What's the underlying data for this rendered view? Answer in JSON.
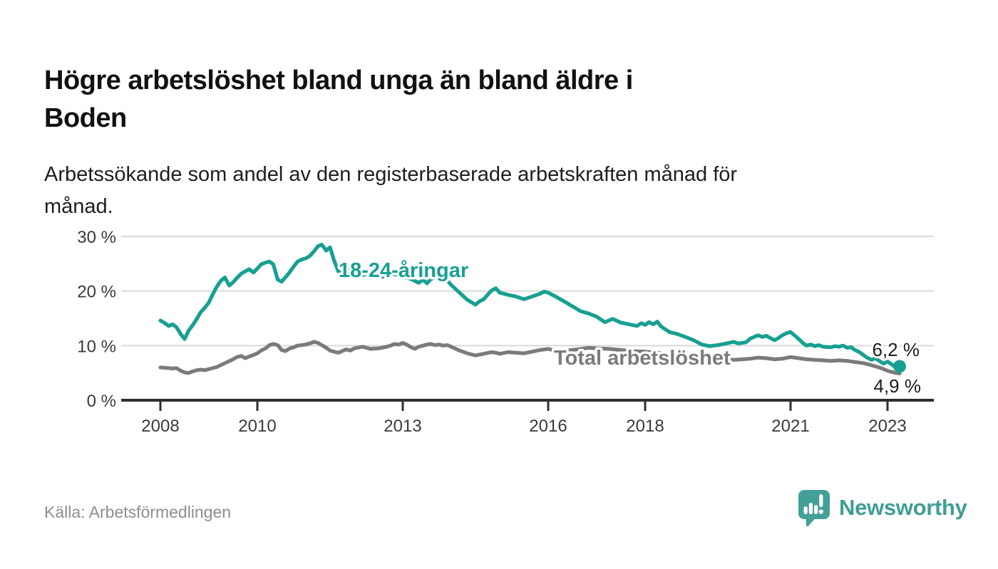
{
  "header": {
    "title_lines": [
      "Högre arbetslöshet bland unga än bland äldre i",
      "Boden"
    ],
    "subtitle_lines": [
      "Arbetssökande som andel av den registerbaserade arbetskraften månad för",
      "månad."
    ]
  },
  "footer": {
    "source": "Källa: Arbetsförmedlingen",
    "brand_name": "Newsworthy",
    "brand_icon": "bar-chart-speech-bubble-icon"
  },
  "chart_data": {
    "type": "line",
    "title": "Högre arbetslöshet bland unga än bland äldre i Boden",
    "subtitle": "Arbetssökande som andel av den registerbaserade arbetskraften månad för månad.",
    "x_unit": "decimal_year_monthly",
    "x_range": [
      2008.0,
      2023.25
    ],
    "ylim": [
      0,
      32
    ],
    "grid": "horizontal",
    "legend": "inline-labels-on-chart",
    "yticks": [
      {
        "value": 0,
        "label": "0 %"
      },
      {
        "value": 10,
        "label": "10 %"
      },
      {
        "value": 20,
        "label": "20 %"
      },
      {
        "value": 30,
        "label": "30 %"
      }
    ],
    "xticks": [
      {
        "value": 2008,
        "label": "2008"
      },
      {
        "value": 2010,
        "label": "2010"
      },
      {
        "value": 2013,
        "label": "2013"
      },
      {
        "value": 2016,
        "label": "2016"
      },
      {
        "value": 2018,
        "label": "2018"
      },
      {
        "value": 2021,
        "label": "2021"
      },
      {
        "value": 2023,
        "label": "2023"
      }
    ],
    "colors": {
      "youth_line": "#17a092",
      "total_line": "#7b7b7b",
      "grid": "#d9d9d9",
      "axis": "#2e2e2e",
      "end_label_text": "#1c1c1c"
    },
    "series": [
      {
        "name": "18-24-åringar",
        "color": "#17a092",
        "end_value": 6.2,
        "end_label": "6,2 %",
        "points": [
          [
            2008.0,
            14.6
          ],
          [
            2008.08,
            14.2
          ],
          [
            2008.17,
            13.6
          ],
          [
            2008.25,
            13.9
          ],
          [
            2008.33,
            13.4
          ],
          [
            2008.42,
            12.1
          ],
          [
            2008.5,
            11.2
          ],
          [
            2008.58,
            12.7
          ],
          [
            2008.67,
            13.8
          ],
          [
            2008.75,
            14.9
          ],
          [
            2008.83,
            16.1
          ],
          [
            2008.92,
            17.0
          ],
          [
            2009.0,
            17.9
          ],
          [
            2009.08,
            19.4
          ],
          [
            2009.17,
            20.9
          ],
          [
            2009.25,
            21.9
          ],
          [
            2009.33,
            22.5
          ],
          [
            2009.42,
            21.0
          ],
          [
            2009.5,
            21.6
          ],
          [
            2009.58,
            22.4
          ],
          [
            2009.67,
            23.2
          ],
          [
            2009.75,
            23.6
          ],
          [
            2009.83,
            24.0
          ],
          [
            2009.92,
            23.4
          ],
          [
            2010.0,
            24.1
          ],
          [
            2010.08,
            24.9
          ],
          [
            2010.17,
            25.2
          ],
          [
            2010.25,
            25.4
          ],
          [
            2010.33,
            24.9
          ],
          [
            2010.42,
            22.1
          ],
          [
            2010.5,
            21.7
          ],
          [
            2010.58,
            22.5
          ],
          [
            2010.67,
            23.5
          ],
          [
            2010.75,
            24.5
          ],
          [
            2010.83,
            25.4
          ],
          [
            2010.92,
            25.8
          ],
          [
            2011.0,
            26.0
          ],
          [
            2011.08,
            26.4
          ],
          [
            2011.17,
            27.3
          ],
          [
            2011.25,
            28.2
          ],
          [
            2011.33,
            28.5
          ],
          [
            2011.42,
            27.4
          ],
          [
            2011.5,
            28.0
          ],
          [
            2011.58,
            25.7
          ],
          [
            2011.67,
            23.6
          ],
          [
            2011.75,
            23.2
          ],
          [
            2011.83,
            24.0
          ],
          [
            2011.92,
            23.4
          ],
          [
            2012.0,
            23.6
          ],
          [
            2012.17,
            22.9
          ],
          [
            2012.33,
            23.3
          ],
          [
            2012.5,
            22.5
          ],
          [
            2012.67,
            22.8
          ],
          [
            2012.83,
            23.1
          ],
          [
            2013.0,
            22.6
          ],
          [
            2013.17,
            22.2
          ],
          [
            2013.33,
            21.5
          ],
          [
            2013.42,
            22.1
          ],
          [
            2013.5,
            21.4
          ],
          [
            2013.58,
            22.2
          ],
          [
            2013.67,
            22.5
          ],
          [
            2013.83,
            22.1
          ],
          [
            2013.92,
            21.9
          ],
          [
            2014.0,
            21.1
          ],
          [
            2014.17,
            19.7
          ],
          [
            2014.33,
            18.4
          ],
          [
            2014.5,
            17.5
          ],
          [
            2014.58,
            18.1
          ],
          [
            2014.67,
            18.5
          ],
          [
            2014.75,
            19.3
          ],
          [
            2014.83,
            20.1
          ],
          [
            2014.92,
            20.5
          ],
          [
            2015.0,
            19.7
          ],
          [
            2015.17,
            19.3
          ],
          [
            2015.33,
            19.0
          ],
          [
            2015.5,
            18.5
          ],
          [
            2015.67,
            19.0
          ],
          [
            2015.83,
            19.5
          ],
          [
            2015.92,
            19.9
          ],
          [
            2016.0,
            19.7
          ],
          [
            2016.17,
            18.9
          ],
          [
            2016.33,
            18.1
          ],
          [
            2016.5,
            17.2
          ],
          [
            2016.67,
            16.3
          ],
          [
            2016.83,
            15.9
          ],
          [
            2017.0,
            15.3
          ],
          [
            2017.17,
            14.3
          ],
          [
            2017.33,
            14.9
          ],
          [
            2017.5,
            14.2
          ],
          [
            2017.67,
            13.9
          ],
          [
            2017.83,
            13.6
          ],
          [
            2017.92,
            14.1
          ],
          [
            2018.0,
            13.8
          ],
          [
            2018.08,
            14.3
          ],
          [
            2018.17,
            13.9
          ],
          [
            2018.25,
            14.4
          ],
          [
            2018.33,
            13.5
          ],
          [
            2018.5,
            12.5
          ],
          [
            2018.67,
            12.1
          ],
          [
            2018.83,
            11.6
          ],
          [
            2019.0,
            11.0
          ],
          [
            2019.17,
            10.2
          ],
          [
            2019.33,
            9.9
          ],
          [
            2019.5,
            10.1
          ],
          [
            2019.67,
            10.4
          ],
          [
            2019.83,
            10.7
          ],
          [
            2019.92,
            10.4
          ],
          [
            2020.08,
            10.6
          ],
          [
            2020.17,
            11.3
          ],
          [
            2020.33,
            11.9
          ],
          [
            2020.42,
            11.6
          ],
          [
            2020.5,
            11.8
          ],
          [
            2020.58,
            11.4
          ],
          [
            2020.67,
            11.0
          ],
          [
            2020.75,
            11.4
          ],
          [
            2020.83,
            11.9
          ],
          [
            2020.92,
            12.3
          ],
          [
            2021.0,
            12.5
          ],
          [
            2021.08,
            11.9
          ],
          [
            2021.17,
            11.2
          ],
          [
            2021.25,
            10.5
          ],
          [
            2021.33,
            10.0
          ],
          [
            2021.42,
            10.2
          ],
          [
            2021.5,
            9.9
          ],
          [
            2021.58,
            10.1
          ],
          [
            2021.67,
            9.8
          ],
          [
            2021.83,
            9.7
          ],
          [
            2021.92,
            9.9
          ],
          [
            2022.0,
            9.8
          ],
          [
            2022.08,
            10.0
          ],
          [
            2022.17,
            9.6
          ],
          [
            2022.25,
            9.7
          ],
          [
            2022.33,
            9.2
          ],
          [
            2022.42,
            8.8
          ],
          [
            2022.5,
            8.3
          ],
          [
            2022.58,
            7.8
          ],
          [
            2022.67,
            7.4
          ],
          [
            2022.75,
            7.7
          ],
          [
            2022.83,
            7.2
          ],
          [
            2022.92,
            6.7
          ],
          [
            2023.0,
            7.1
          ],
          [
            2023.08,
            6.6
          ],
          [
            2023.17,
            6.0
          ],
          [
            2023.25,
            6.2
          ]
        ]
      },
      {
        "name": "Total arbetslöshet",
        "color": "#7b7b7b",
        "end_value": 4.9,
        "end_label": "4,9 %",
        "points": [
          [
            2008.0,
            6.0
          ],
          [
            2008.17,
            5.9
          ],
          [
            2008.25,
            5.8
          ],
          [
            2008.33,
            5.9
          ],
          [
            2008.42,
            5.4
          ],
          [
            2008.5,
            5.1
          ],
          [
            2008.58,
            5.0
          ],
          [
            2008.67,
            5.3
          ],
          [
            2008.75,
            5.5
          ],
          [
            2008.83,
            5.6
          ],
          [
            2008.92,
            5.5
          ],
          [
            2009.0,
            5.7
          ],
          [
            2009.17,
            6.1
          ],
          [
            2009.33,
            6.8
          ],
          [
            2009.5,
            7.5
          ],
          [
            2009.58,
            7.9
          ],
          [
            2009.67,
            8.1
          ],
          [
            2009.75,
            7.7
          ],
          [
            2009.83,
            8.0
          ],
          [
            2009.92,
            8.3
          ],
          [
            2010.0,
            8.6
          ],
          [
            2010.08,
            9.1
          ],
          [
            2010.17,
            9.5
          ],
          [
            2010.25,
            10.1
          ],
          [
            2010.33,
            10.3
          ],
          [
            2010.42,
            10.1
          ],
          [
            2010.5,
            9.2
          ],
          [
            2010.58,
            9.0
          ],
          [
            2010.67,
            9.5
          ],
          [
            2010.75,
            9.7
          ],
          [
            2010.83,
            10.0
          ],
          [
            2010.92,
            10.1
          ],
          [
            2011.0,
            10.2
          ],
          [
            2011.08,
            10.4
          ],
          [
            2011.17,
            10.7
          ],
          [
            2011.25,
            10.5
          ],
          [
            2011.33,
            10.1
          ],
          [
            2011.42,
            9.6
          ],
          [
            2011.5,
            9.1
          ],
          [
            2011.58,
            8.9
          ],
          [
            2011.67,
            8.7
          ],
          [
            2011.75,
            9.0
          ],
          [
            2011.83,
            9.3
          ],
          [
            2011.92,
            9.1
          ],
          [
            2012.0,
            9.5
          ],
          [
            2012.17,
            9.8
          ],
          [
            2012.25,
            9.6
          ],
          [
            2012.33,
            9.4
          ],
          [
            2012.5,
            9.5
          ],
          [
            2012.67,
            9.8
          ],
          [
            2012.75,
            10.0
          ],
          [
            2012.83,
            10.3
          ],
          [
            2012.92,
            10.2
          ],
          [
            2013.0,
            10.5
          ],
          [
            2013.08,
            10.2
          ],
          [
            2013.17,
            9.7
          ],
          [
            2013.25,
            9.4
          ],
          [
            2013.33,
            9.8
          ],
          [
            2013.42,
            10.0
          ],
          [
            2013.5,
            10.2
          ],
          [
            2013.58,
            10.3
          ],
          [
            2013.67,
            10.1
          ],
          [
            2013.75,
            10.2
          ],
          [
            2013.83,
            10.0
          ],
          [
            2013.92,
            10.1
          ],
          [
            2014.0,
            9.8
          ],
          [
            2014.17,
            9.1
          ],
          [
            2014.33,
            8.6
          ],
          [
            2014.5,
            8.2
          ],
          [
            2014.67,
            8.5
          ],
          [
            2014.83,
            8.8
          ],
          [
            2014.92,
            8.7
          ],
          [
            2015.0,
            8.5
          ],
          [
            2015.17,
            8.8
          ],
          [
            2015.33,
            8.7
          ],
          [
            2015.5,
            8.6
          ],
          [
            2015.67,
            8.9
          ],
          [
            2015.83,
            9.2
          ],
          [
            2016.0,
            9.4
          ],
          [
            2016.17,
            9.0
          ],
          [
            2016.25,
            8.8
          ],
          [
            2016.33,
            9.0
          ],
          [
            2016.5,
            9.2
          ],
          [
            2016.67,
            9.4
          ],
          [
            2016.83,
            9.6
          ],
          [
            2017.0,
            9.5
          ],
          [
            2017.25,
            9.4
          ],
          [
            2017.5,
            9.2
          ],
          [
            2017.75,
            9.0
          ],
          [
            2018.0,
            8.9
          ],
          [
            2018.25,
            8.7
          ],
          [
            2018.5,
            8.4
          ],
          [
            2018.75,
            8.1
          ],
          [
            2019.0,
            7.8
          ],
          [
            2019.17,
            7.6
          ],
          [
            2019.33,
            7.5
          ],
          [
            2019.5,
            7.6
          ],
          [
            2019.67,
            7.5
          ],
          [
            2019.83,
            7.4
          ],
          [
            2020.0,
            7.5
          ],
          [
            2020.17,
            7.6
          ],
          [
            2020.33,
            7.8
          ],
          [
            2020.5,
            7.7
          ],
          [
            2020.67,
            7.5
          ],
          [
            2020.83,
            7.6
          ],
          [
            2021.0,
            7.9
          ],
          [
            2021.17,
            7.7
          ],
          [
            2021.33,
            7.5
          ],
          [
            2021.5,
            7.4
          ],
          [
            2021.67,
            7.3
          ],
          [
            2021.83,
            7.2
          ],
          [
            2022.0,
            7.3
          ],
          [
            2022.17,
            7.2
          ],
          [
            2022.33,
            7.0
          ],
          [
            2022.5,
            6.8
          ],
          [
            2022.67,
            6.4
          ],
          [
            2022.83,
            6.0
          ],
          [
            2022.92,
            5.7
          ],
          [
            2023.0,
            5.4
          ],
          [
            2023.08,
            5.2
          ],
          [
            2023.17,
            5.0
          ],
          [
            2023.25,
            4.9
          ]
        ]
      }
    ]
  }
}
